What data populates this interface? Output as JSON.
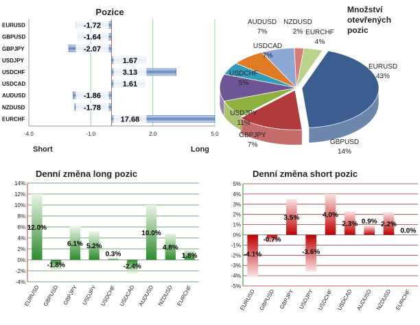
{
  "chart_data": [
    {
      "type": "bar",
      "orientation": "horizontal",
      "title": "Pozice",
      "categories": [
        "EURUSD",
        "GBPUSD",
        "GBPJPY",
        "USDJPY",
        "USDCHF",
        "USDCAD",
        "AUDUSD",
        "NZDUSD",
        "EURCHF"
      ],
      "values": [
        -1.72,
        -1.64,
        -2.07,
        1.67,
        3.13,
        1.61,
        -1.86,
        -1.78,
        17.68
      ],
      "value_labels": [
        "-1.72",
        "-1.64",
        "-2.07",
        "1.67",
        "3.13",
        "1.61",
        "-1.86",
        "-1.78",
        "17.68"
      ],
      "xlim": [
        -4,
        5
      ],
      "xticks": [
        "-4.0",
        "-1.0",
        "2.0",
        "5.0"
      ],
      "left_label": "Short",
      "right_label": "Long",
      "colors": {
        "bar": "#5f83bd",
        "bar_light": "#d6e3f5",
        "grid": "#9fd59f",
        "zero": "#c85a5a"
      }
    },
    {
      "type": "pie",
      "title": "Množství otevřených pozic",
      "slices": [
        {
          "name": "EURUSD",
          "value": 43,
          "label": "43%",
          "color": "#3b5e91"
        },
        {
          "name": "GBPUSD",
          "value": 14,
          "label": "14%",
          "color": "#b13a3a"
        },
        {
          "name": "GBPJPY",
          "value": 7,
          "label": "7%",
          "color": "#8db03f"
        },
        {
          "name": "USDJPY",
          "value": 11,
          "label": "11%",
          "color": "#6f5596"
        },
        {
          "name": "USDCHF",
          "value": 5,
          "label": "5%",
          "color": "#2f9dba"
        },
        {
          "name": "USDCAD",
          "value": 7,
          "label": "7%",
          "color": "#e07b25"
        },
        {
          "name": "AUDUSD",
          "value": 7,
          "label": "7%",
          "color": "#8ea8d6"
        },
        {
          "name": "NZDUSD",
          "value": 2,
          "label": "2%",
          "color": "#d87a78"
        },
        {
          "name": "EURCHF",
          "value": 4,
          "label": "4%",
          "color": "#b9d38a"
        }
      ]
    },
    {
      "type": "bar",
      "title": "Denní změna long pozic",
      "categories": [
        "EURUSD",
        "GBPUSD",
        "GBPJPY",
        "USDJPY",
        "USDCHF",
        "USDCAD",
        "AUDUSD",
        "NZDUSD",
        "EURCHF"
      ],
      "values": [
        12.0,
        -1.8,
        6.1,
        5.2,
        0.3,
        -2.4,
        10.0,
        4.8,
        1.8
      ],
      "value_labels": [
        "12.0%",
        "-1.8%",
        "6.1%",
        "5.2%",
        "0.3%",
        "-2.4%",
        "10.0%",
        "4.8%",
        "1.8%"
      ],
      "ylim": [
        -4,
        14
      ],
      "yticks": [
        "-4%",
        "-2%",
        "0%",
        "2%",
        "4%",
        "6%",
        "8%",
        "10%",
        "12%",
        "14%"
      ],
      "colors": {
        "bar": "#2e8b2e",
        "bar_light": "#e9f5e4",
        "grid": "#3a9a3a",
        "axis": "#c04040"
      }
    },
    {
      "type": "bar",
      "title": "Denní změna short pozic",
      "categories": [
        "EURUSD",
        "GBPUSD",
        "GBPJPY",
        "USDJPY",
        "USDCHF",
        "USDCAD",
        "AUDUSD",
        "NZDUSD",
        "EURCHF"
      ],
      "values": [
        -4.1,
        -0.7,
        3.5,
        -3.6,
        4.0,
        2.3,
        0.9,
        2.2,
        0.0
      ],
      "value_labels": [
        "-4.1%",
        "-0.7%",
        "3.5%",
        "-3.6%",
        "4.0%",
        "2.3%",
        "0.9%",
        "2.2%",
        "0.0%"
      ],
      "ylim": [
        -5,
        5
      ],
      "yticks": [
        "-5%",
        "-4%",
        "-3%",
        "-2%",
        "-1%",
        "0%",
        "1%",
        "2%",
        "3%",
        "4%",
        "5%"
      ],
      "colors": {
        "bar": "#c00000",
        "bar_light": "#fbe3e3",
        "grid": "#a83232",
        "axis": "#2e8b2e"
      }
    }
  ]
}
